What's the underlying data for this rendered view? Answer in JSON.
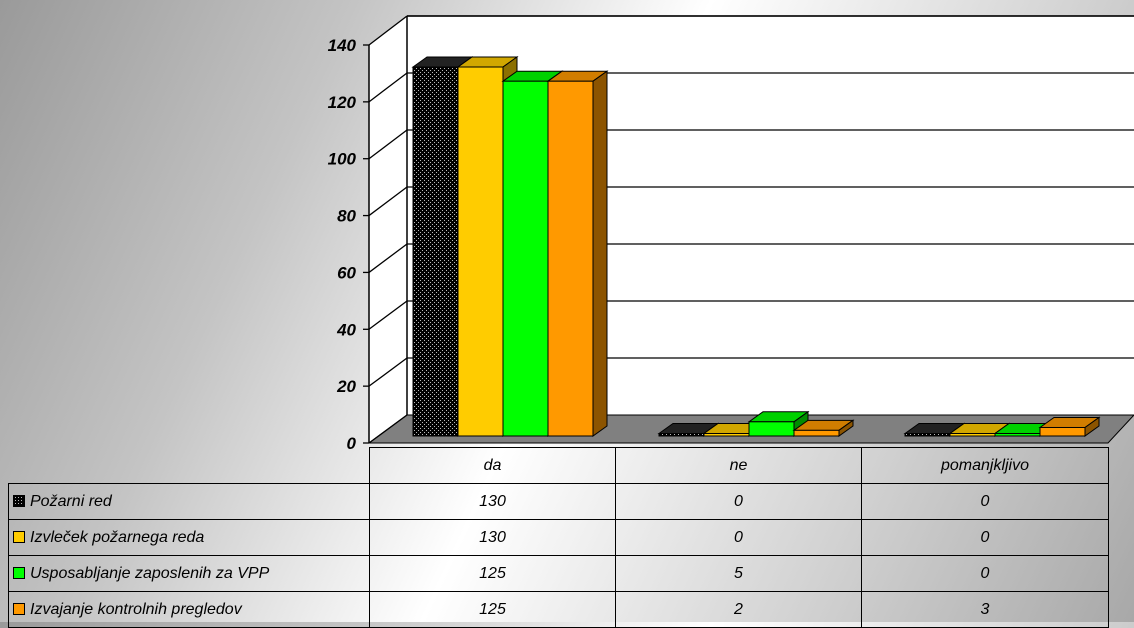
{
  "chart_data": {
    "type": "bar",
    "categories": [
      "da",
      "ne",
      "pomanjkljivo"
    ],
    "series": [
      {
        "name": "Požarni red",
        "values": [
          130,
          0,
          0
        ],
        "color": "#000000",
        "pattern": "dotted-black"
      },
      {
        "name": "Izvleček požarnega reda",
        "values": [
          130,
          0,
          0
        ],
        "color": "#ffcc00"
      },
      {
        "name": "Usposabljanje zaposlenih za VPP",
        "values": [
          125,
          5,
          0
        ],
        "color": "#00ff00"
      },
      {
        "name": "Izvajanje kontrolnih pregledov",
        "values": [
          125,
          2,
          3
        ],
        "color": "#ff9900"
      }
    ],
    "ylim": [
      0,
      140
    ],
    "yticks": [
      "0",
      "20",
      "40",
      "60",
      "80",
      "100",
      "120",
      "140"
    ],
    "grid": true,
    "legend": "data-table",
    "three_d": true
  },
  "table": {
    "rows": [
      {
        "label": "Požarni red",
        "values": [
          "130",
          "0",
          "0"
        ]
      },
      {
        "label": "Izvleček požarnega reda",
        "values": [
          "130",
          "0",
          "0"
        ]
      },
      {
        "label": "Usposabljanje zaposlenih za VPP",
        "values": [
          "125",
          "5",
          "0"
        ]
      },
      {
        "label": "Izvajanje kontrolnih pregledov",
        "values": [
          "125",
          "2",
          "3"
        ]
      }
    ]
  }
}
